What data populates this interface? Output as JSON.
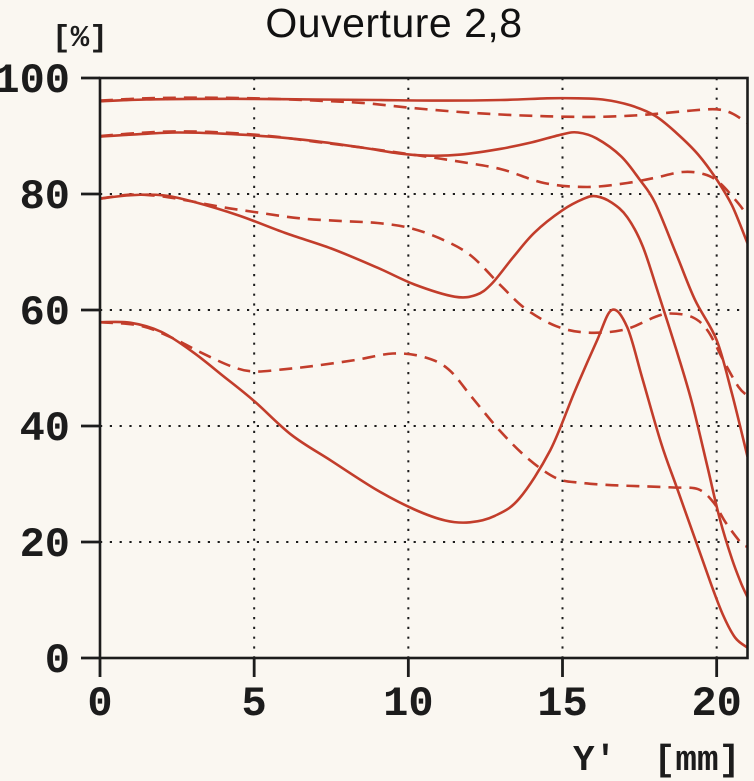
{
  "title": "Ouverture 2,8",
  "axes": {
    "y_unit_label": "[%]",
    "x_axis_label": "Y' [mm]"
  },
  "chart_data": {
    "type": "line",
    "title": "Ouverture 2,8",
    "xlabel": "Y' [mm]",
    "ylabel": "[%]",
    "xlim": [
      0,
      21
    ],
    "ylim": [
      0,
      100
    ],
    "x_ticks": [
      0,
      5,
      10,
      15,
      20
    ],
    "y_ticks": [
      0,
      20,
      40,
      60,
      80,
      100
    ],
    "grid": "dotted",
    "legend": "none",
    "line_color": "#c23d2b",
    "frame_color": "#1c1c1c",
    "background_color": "#faf7f1",
    "series": [
      {
        "id": "curve-1-solid",
        "line_style": "solid",
        "points": [
          [
            0,
            96.0
          ],
          [
            1.5,
            96.3
          ],
          [
            3,
            96.4
          ],
          [
            5,
            96.4
          ],
          [
            7,
            96.3
          ],
          [
            9,
            96.2
          ],
          [
            11,
            96.1
          ],
          [
            13,
            96.2
          ],
          [
            14.5,
            96.5
          ],
          [
            15.5,
            96.5
          ],
          [
            16.3,
            96.3
          ],
          [
            17.2,
            95.3
          ],
          [
            18,
            93.5
          ],
          [
            18.7,
            90.5
          ],
          [
            19.4,
            86.8
          ],
          [
            20,
            82.5
          ],
          [
            20.5,
            78.0
          ],
          [
            21,
            71.5
          ]
        ]
      },
      {
        "id": "curve-1-dashed",
        "line_style": "dashed",
        "points": [
          [
            0,
            96.1
          ],
          [
            1.5,
            96.5
          ],
          [
            3,
            96.6
          ],
          [
            5,
            96.5
          ],
          [
            7,
            96.1
          ],
          [
            8.5,
            95.7
          ],
          [
            10,
            94.9
          ],
          [
            11.5,
            94.2
          ],
          [
            13,
            93.7
          ],
          [
            14.5,
            93.4
          ],
          [
            16,
            93.3
          ],
          [
            17.2,
            93.5
          ],
          [
            18.2,
            93.9
          ],
          [
            19.2,
            94.4
          ],
          [
            20,
            94.6
          ],
          [
            20.5,
            93.9
          ],
          [
            21,
            92.2
          ]
        ]
      },
      {
        "id": "curve-2-solid",
        "line_style": "solid",
        "points": [
          [
            0,
            89.9
          ],
          [
            1.2,
            90.3
          ],
          [
            2.5,
            90.6
          ],
          [
            4,
            90.4
          ],
          [
            5.5,
            89.9
          ],
          [
            7,
            89.1
          ],
          [
            8.5,
            88.0
          ],
          [
            9.7,
            87.0
          ],
          [
            10.7,
            86.6
          ],
          [
            11.7,
            86.8
          ],
          [
            13,
            87.8
          ],
          [
            14,
            88.9
          ],
          [
            15,
            90.3
          ],
          [
            15.5,
            90.6
          ],
          [
            16.1,
            89.6
          ],
          [
            16.9,
            86.5
          ],
          [
            17.5,
            82.5
          ],
          [
            18,
            78.5
          ],
          [
            18.7,
            69.5
          ],
          [
            19.3,
            61.7
          ],
          [
            20,
            54.8
          ],
          [
            20.5,
            45.5
          ],
          [
            21,
            34.7
          ]
        ]
      },
      {
        "id": "curve-2-dashed",
        "line_style": "dashed",
        "points": [
          [
            0,
            90.0
          ],
          [
            1.2,
            90.5
          ],
          [
            2.5,
            90.8
          ],
          [
            4,
            90.6
          ],
          [
            5.5,
            90.0
          ],
          [
            7,
            89.0
          ],
          [
            8.5,
            88.0
          ],
          [
            10,
            86.9
          ],
          [
            11.5,
            85.7
          ],
          [
            13,
            84.3
          ],
          [
            14.4,
            81.9
          ],
          [
            15.8,
            81.2
          ],
          [
            17.1,
            81.9
          ],
          [
            18,
            82.8
          ],
          [
            18.9,
            83.8
          ],
          [
            19.6,
            83.4
          ],
          [
            20.1,
            81.9
          ],
          [
            20.7,
            78.4
          ],
          [
            21,
            76.2
          ]
        ]
      },
      {
        "id": "curve-3-solid",
        "line_style": "solid",
        "points": [
          [
            0,
            79.2
          ],
          [
            1,
            79.8
          ],
          [
            2,
            79.8
          ],
          [
            3,
            78.7
          ],
          [
            4.5,
            76.3
          ],
          [
            6,
            73.3
          ],
          [
            7.5,
            70.6
          ],
          [
            9,
            67.3
          ],
          [
            10.2,
            64.4
          ],
          [
            11.5,
            62.3
          ],
          [
            12.2,
            62.6
          ],
          [
            12.7,
            64.5
          ],
          [
            13.4,
            69.1
          ],
          [
            14.1,
            73.4
          ],
          [
            15,
            77.2
          ],
          [
            15.7,
            79.2
          ],
          [
            16.1,
            79.6
          ],
          [
            16.6,
            78.5
          ],
          [
            17.1,
            76.0
          ],
          [
            17.6,
            71.0
          ],
          [
            18.1,
            63.0
          ],
          [
            18.7,
            53.0
          ],
          [
            19.2,
            44.0
          ],
          [
            19.7,
            33.0
          ],
          [
            20.1,
            24.0
          ],
          [
            20.5,
            17.0
          ],
          [
            20.8,
            12.8
          ],
          [
            21,
            10.5
          ]
        ]
      },
      {
        "id": "curve-3-dashed",
        "line_style": "dashed",
        "points": [
          [
            0,
            79.2
          ],
          [
            1,
            79.9
          ],
          [
            2,
            79.6
          ],
          [
            3,
            78.7
          ],
          [
            4,
            77.7
          ],
          [
            5,
            76.9
          ],
          [
            6.5,
            75.8
          ],
          [
            8,
            75.3
          ],
          [
            9,
            75.0
          ],
          [
            10,
            74.2
          ],
          [
            11,
            72.4
          ],
          [
            12,
            69.5
          ],
          [
            13,
            64.2
          ],
          [
            13.8,
            60.2
          ],
          [
            14.8,
            57.2
          ],
          [
            15.8,
            56.1
          ],
          [
            17,
            56.6
          ],
          [
            18,
            58.8
          ],
          [
            18.5,
            59.4
          ],
          [
            19.2,
            58.8
          ],
          [
            19.7,
            56.5
          ],
          [
            20.2,
            51.5
          ],
          [
            20.7,
            46.8
          ],
          [
            21,
            45.2
          ]
        ]
      },
      {
        "id": "curve-4-solid",
        "line_style": "solid",
        "points": [
          [
            0,
            57.9
          ],
          [
            1,
            57.8
          ],
          [
            2,
            56.2
          ],
          [
            3,
            52.8
          ],
          [
            4,
            48.6
          ],
          [
            5,
            44.3
          ],
          [
            6.2,
            38.5
          ],
          [
            7.5,
            34.0
          ],
          [
            9,
            28.9
          ],
          [
            10.2,
            25.6
          ],
          [
            11.2,
            23.7
          ],
          [
            12,
            23.4
          ],
          [
            12.8,
            24.5
          ],
          [
            13.6,
            27.5
          ],
          [
            14.6,
            35.8
          ],
          [
            15.4,
            46.0
          ],
          [
            16.1,
            54.5
          ],
          [
            16.6,
            60.0
          ],
          [
            17.1,
            57.0
          ],
          [
            17.6,
            48.0
          ],
          [
            18.2,
            37.0
          ],
          [
            18.7,
            29.5
          ],
          [
            19.3,
            20.5
          ],
          [
            19.8,
            13.0
          ],
          [
            20.2,
            7.5
          ],
          [
            20.6,
            3.5
          ],
          [
            21,
            1.8
          ]
        ]
      },
      {
        "id": "curve-4-dashed",
        "line_style": "dashed",
        "points": [
          [
            0,
            57.9
          ],
          [
            1.3,
            57.3
          ],
          [
            2.3,
            55.3
          ],
          [
            3.3,
            52.6
          ],
          [
            4.3,
            50.2
          ],
          [
            5,
            49.4
          ],
          [
            6,
            49.8
          ],
          [
            7,
            50.4
          ],
          [
            8.3,
            51.4
          ],
          [
            9.5,
            52.5
          ],
          [
            10.5,
            51.9
          ],
          [
            11.3,
            49.8
          ],
          [
            12.1,
            44.7
          ],
          [
            13,
            39.0
          ],
          [
            13.9,
            34.3
          ],
          [
            14.8,
            31.0
          ],
          [
            15.6,
            30.2
          ],
          [
            16.6,
            29.8
          ],
          [
            17.6,
            29.6
          ],
          [
            18.6,
            29.4
          ],
          [
            19.4,
            29.1
          ],
          [
            19.9,
            26.8
          ],
          [
            20.3,
            23.3
          ],
          [
            20.8,
            19.8
          ],
          [
            21,
            19.2
          ]
        ]
      }
    ]
  }
}
